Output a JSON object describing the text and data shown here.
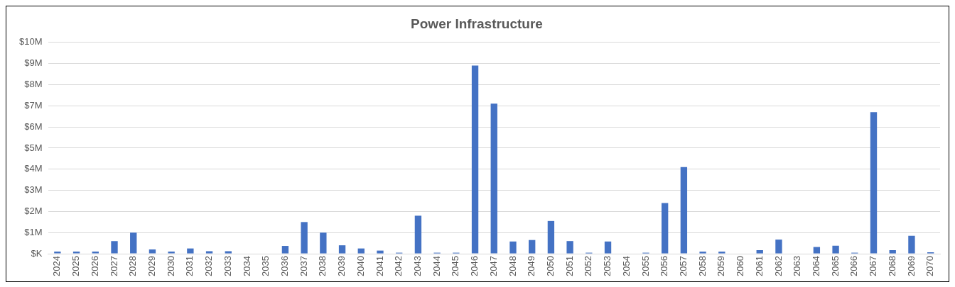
{
  "chart_data": {
    "type": "bar",
    "title": "Power Infrastructure",
    "categories": [
      "2024",
      "2025",
      "2026",
      "2027",
      "2028",
      "2029",
      "2030",
      "2031",
      "2032",
      "2033",
      "2034",
      "2035",
      "2036",
      "2037",
      "2038",
      "2039",
      "2040",
      "2041",
      "2042",
      "2043",
      "2044",
      "2045",
      "2046",
      "2047",
      "2048",
      "2049",
      "2050",
      "2051",
      "2052",
      "2053",
      "2054",
      "2055",
      "2056",
      "2057",
      "2058",
      "2059",
      "2060",
      "2061",
      "2062",
      "2063",
      "2064",
      "2065",
      "2066",
      "2067",
      "2068",
      "2069",
      "2070"
    ],
    "values": [
      0.1,
      0.1,
      0.1,
      0.6,
      1.0,
      0.2,
      0.1,
      0.25,
      0.12,
      0.12,
      0,
      0,
      0.37,
      1.5,
      1.0,
      0.4,
      0.25,
      0.15,
      0.05,
      1.8,
      0.05,
      0.05,
      8.9,
      7.1,
      0.58,
      0.65,
      1.55,
      0.6,
      0.05,
      0.58,
      0,
      0.05,
      2.4,
      4.1,
      0.1,
      0.1,
      0,
      0.17,
      0.67,
      0,
      0.32,
      0.38,
      0.05,
      6.7,
      0.17,
      0.85,
      0.07
    ],
    "color": "#4472c4",
    "ylim": [
      0,
      10
    ],
    "yticks": [
      {
        "value": 0,
        "label": "$K"
      },
      {
        "value": 1,
        "label": "$1M"
      },
      {
        "value": 2,
        "label": "$2M"
      },
      {
        "value": 3,
        "label": "$3M"
      },
      {
        "value": 4,
        "label": "$4M"
      },
      {
        "value": 5,
        "label": "$5M"
      },
      {
        "value": 6,
        "label": "$6M"
      },
      {
        "value": 7,
        "label": "$7M"
      },
      {
        "value": 8,
        "label": "$8M"
      },
      {
        "value": 9,
        "label": "$9M"
      },
      {
        "value": 10,
        "label": "$10M"
      }
    ],
    "grid": "y",
    "legend": false
  }
}
